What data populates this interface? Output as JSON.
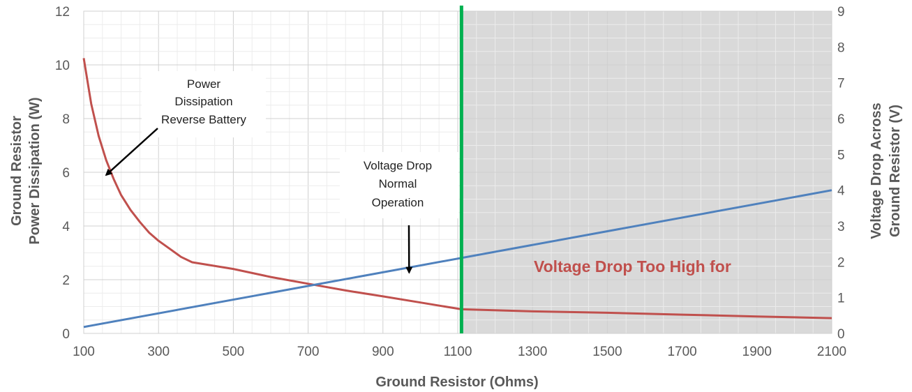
{
  "chart_data": {
    "type": "line",
    "x_axis": {
      "label": "Ground Resistor (Ohms)",
      "range": [
        100,
        2100
      ],
      "ticks": [
        100,
        300,
        500,
        700,
        900,
        1100,
        1300,
        1500,
        1700,
        1900,
        2100
      ]
    },
    "y_axis_left": {
      "label_lines": [
        "Ground Resistor",
        "Power Dissipation (W)"
      ],
      "range": [
        0,
        12
      ],
      "ticks": [
        0,
        2,
        4,
        6,
        8,
        10,
        12
      ]
    },
    "y_axis_right": {
      "label_lines": [
        "Voltage Drop Across",
        "Ground Resistor (V)"
      ],
      "range": [
        0,
        9
      ],
      "ticks": [
        0,
        1,
        2,
        3,
        4,
        5,
        6,
        7,
        8,
        9
      ]
    },
    "grid": true,
    "series": [
      {
        "axis": "left",
        "color": "#c0504d",
        "x": [
          100,
          120,
          140,
          160,
          180,
          200,
          225,
          250,
          275,
          300,
          330,
          360,
          390,
          500,
          600,
          700,
          800,
          900,
          1000,
          1110,
          1300,
          1500,
          1700,
          1900,
          2100
        ],
        "y": [
          10.25,
          8.55,
          7.35,
          6.45,
          5.75,
          5.15,
          4.6,
          4.15,
          3.75,
          3.45,
          3.15,
          2.85,
          2.65,
          2.4,
          2.1,
          1.85,
          1.6,
          1.38,
          1.15,
          0.9,
          0.82,
          0.77,
          0.7,
          0.63,
          0.57
        ]
      },
      {
        "axis": "right",
        "color": "#4f81bd",
        "x": [
          100,
          2100
        ],
        "y": [
          0.18,
          4.0
        ]
      }
    ],
    "threshold": {
      "x": 1110,
      "line_color": "#00b050",
      "shade_color": "#d9d9d9",
      "label": "Voltage Drop Too High for",
      "label_color": "#c0504d"
    },
    "annotations": [
      {
        "lines": [
          "Power",
          "Dissipation",
          "Reverse Battery"
        ],
        "arrow_to": {
          "x": 160,
          "y": 5.9
        }
      },
      {
        "lines": [
          "Voltage Drop",
          "Normal",
          "Operation"
        ],
        "arrow_to": {
          "x": 970,
          "y": 1.7
        }
      }
    ]
  }
}
